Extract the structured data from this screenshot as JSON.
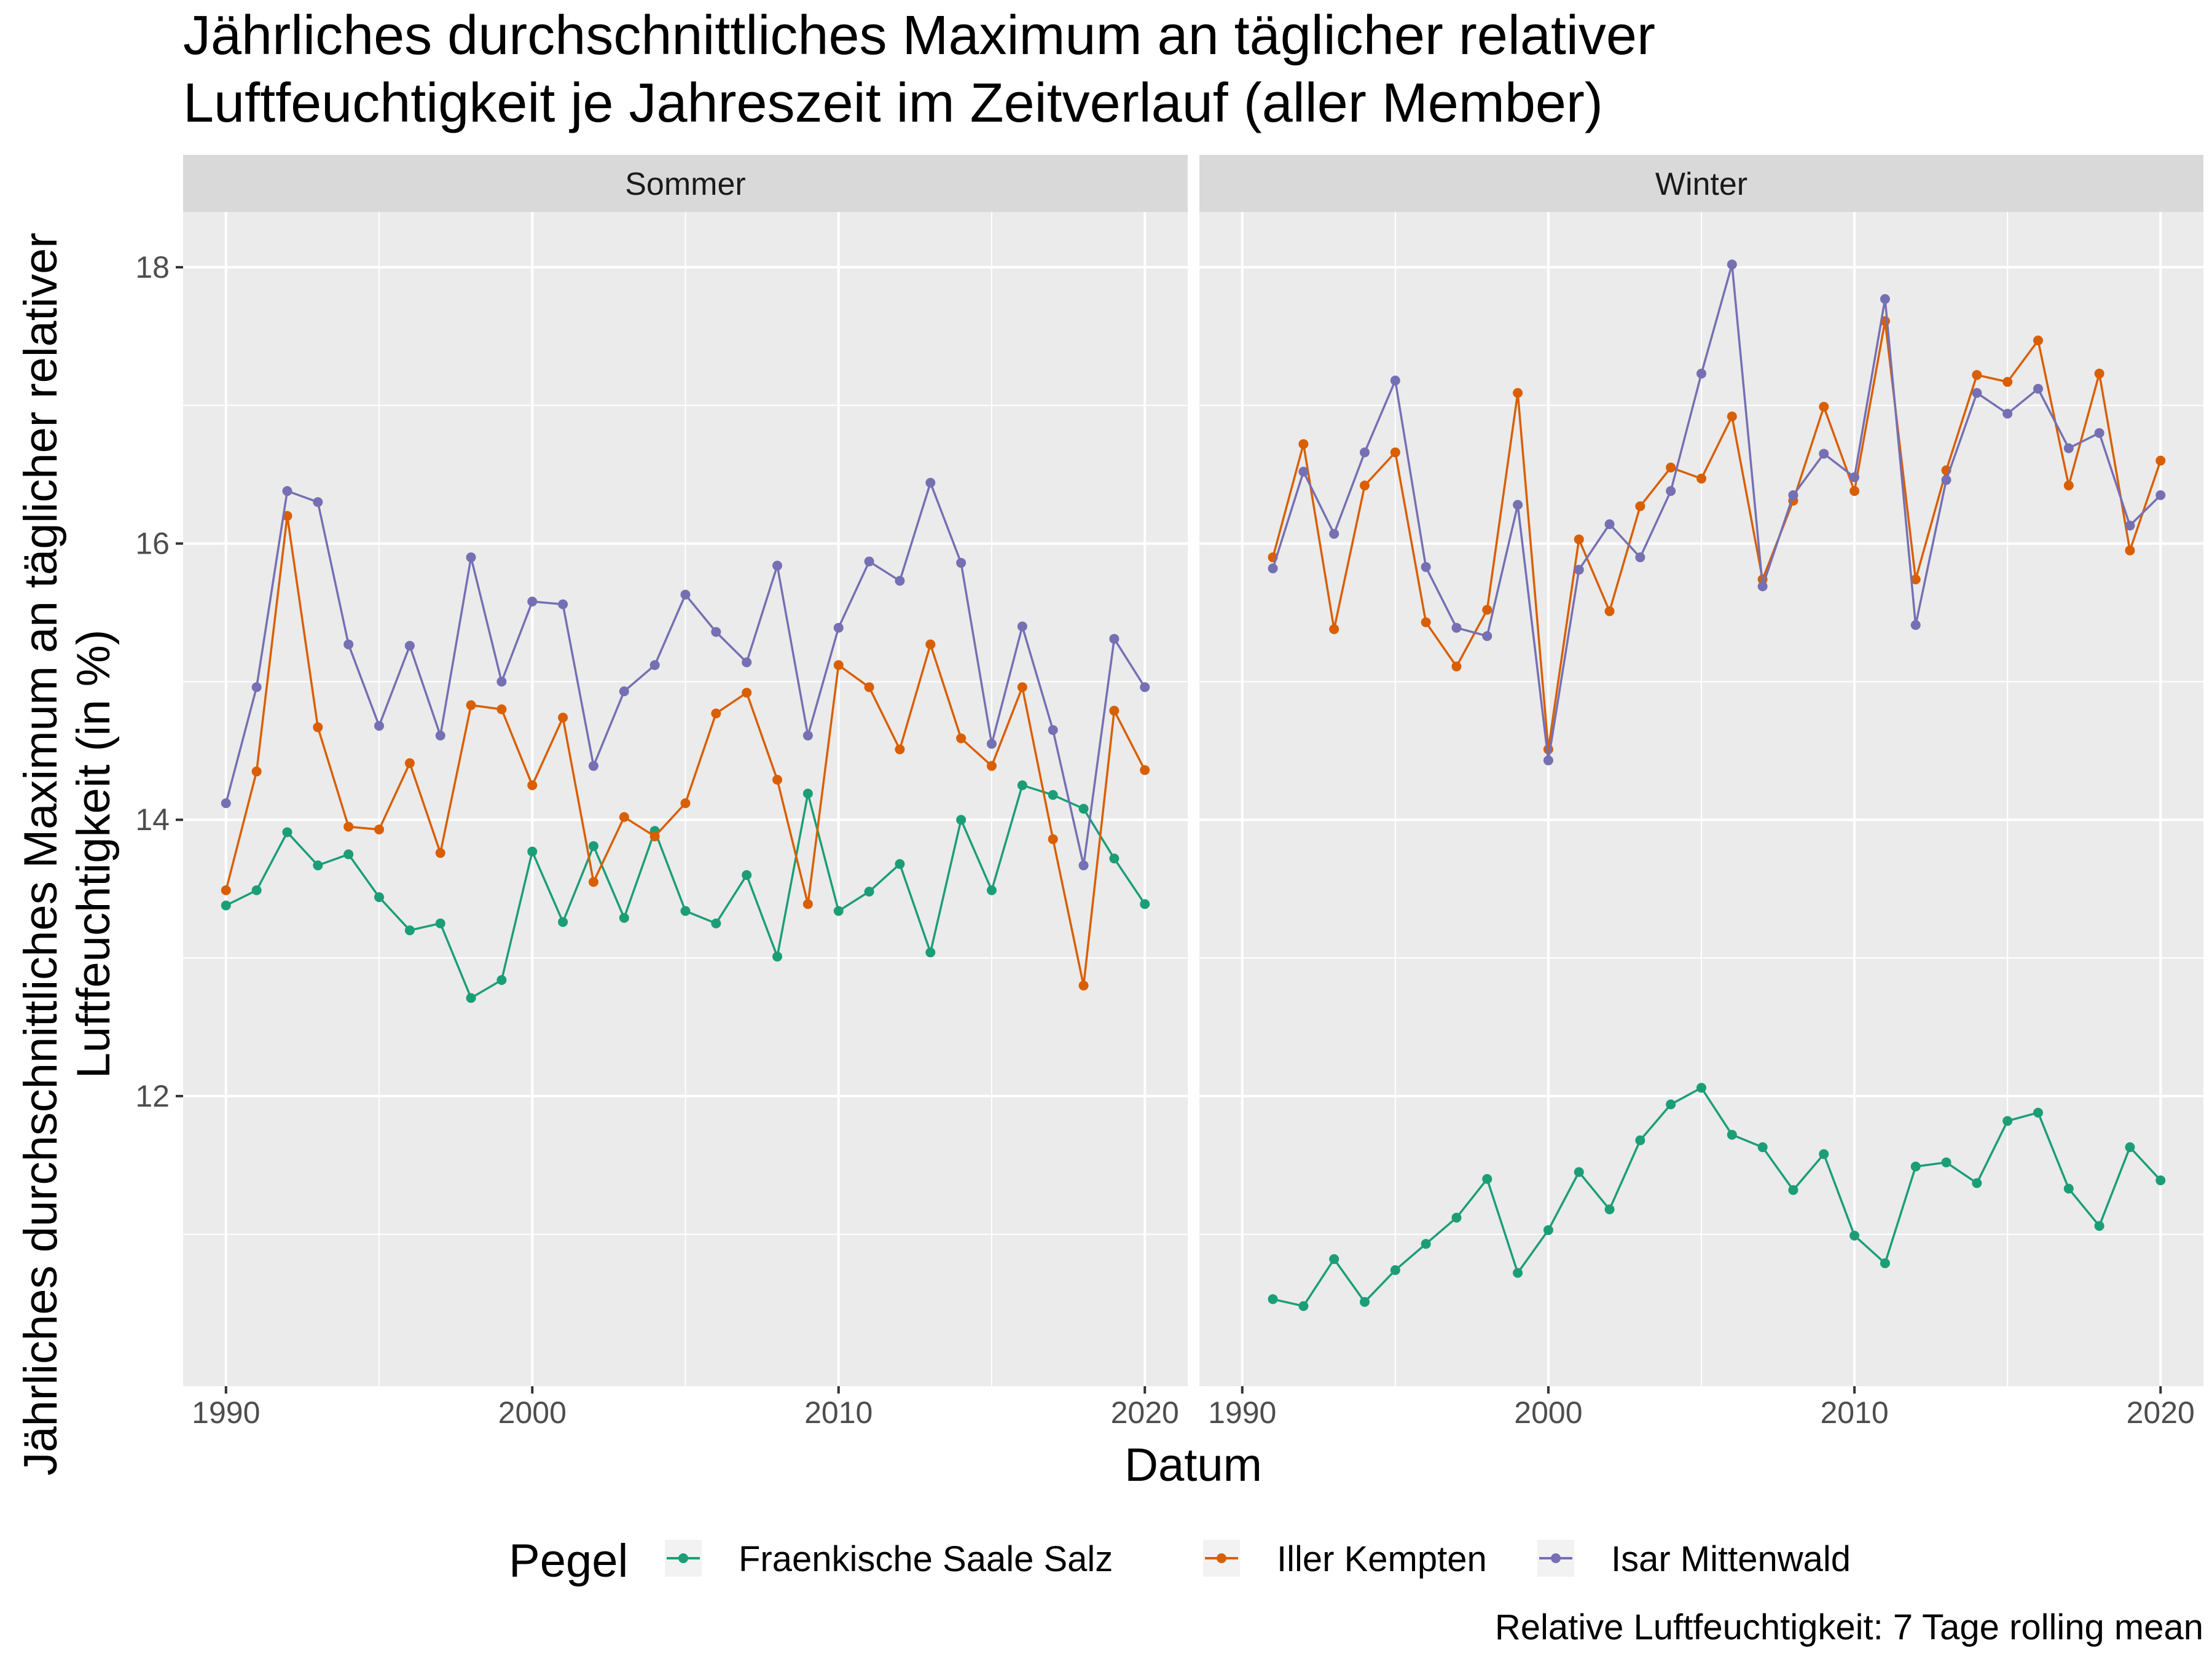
{
  "title_lines": [
    "Jährliches durchschnittliches Maximum an täglicher relativer",
    "Luftfeuchtigkeit je Jahreszeit im Zeitverlauf (aller Member)"
  ],
  "caption": "Relative Luftfeuchtigkeit: 7 Tage rolling mean",
  "legend": {
    "title": "Pegel"
  },
  "colors": {
    "Fraenkische Saale Salz": "#1b9e77",
    "Iller Kempten": "#d95f02",
    "Isar Mittenwald": "#7570b3",
    "panel_bg": "#ebebeb",
    "strip_bg": "#d9d9d9",
    "grid": "#ffffff"
  },
  "chart_data": {
    "type": "line",
    "title": "Jährliches durchschnittliches Maximum an täglicher relativer Luftfeuchtigkeit je Jahreszeit im Zeitverlauf (aller Member)",
    "xlabel": "Datum",
    "ylabel": "Jährliches durchschnittliches Maximum an täglicher relativer Luftfeuchtigkeit (in %)",
    "ylabel_lines": [
      "Jährliches durchschnittliches Maximum an täglicher relativer",
      "Luftfeuchtigkeit (in %)"
    ],
    "xlim": [
      1988.6,
      2021.4
    ],
    "ylim": [
      9.9,
      18.4
    ],
    "x_ticks": [
      1990,
      2000,
      2010,
      2020
    ],
    "y_ticks": [
      12,
      14,
      16,
      18
    ],
    "grid": true,
    "legend_position": "bottom",
    "panels": [
      {
        "name": "Sommer",
        "series": [
          {
            "name": "Fraenkische Saale Salz",
            "x": [
              1990,
              1991,
              1992,
              1993,
              1994,
              1995,
              1996,
              1997,
              1998,
              1999,
              2000,
              2001,
              2002,
              2003,
              2004,
              2005,
              2006,
              2007,
              2008,
              2009,
              2010,
              2011,
              2012,
              2013,
              2014,
              2015,
              2016,
              2017,
              2018,
              2019,
              2020
            ],
            "y": [
              13.38,
              13.49,
              13.91,
              13.67,
              13.75,
              13.44,
              13.2,
              13.25,
              12.71,
              12.84,
              13.77,
              13.26,
              13.81,
              13.29,
              13.92,
              13.34,
              13.25,
              13.6,
              13.01,
              14.19,
              13.34,
              13.48,
              13.68,
              13.04,
              14.0,
              13.49,
              14.25,
              14.18,
              14.08,
              13.72,
              13.39
            ]
          },
          {
            "name": "Iller Kempten",
            "x": [
              1990,
              1991,
              1992,
              1993,
              1994,
              1995,
              1996,
              1997,
              1998,
              1999,
              2000,
              2001,
              2002,
              2003,
              2004,
              2005,
              2006,
              2007,
              2008,
              2009,
              2010,
              2011,
              2012,
              2013,
              2014,
              2015,
              2016,
              2017,
              2018,
              2019,
              2020
            ],
            "y": [
              13.49,
              14.35,
              16.2,
              14.67,
              13.95,
              13.93,
              14.41,
              13.76,
              14.83,
              14.8,
              14.25,
              14.74,
              13.55,
              14.02,
              13.88,
              14.12,
              14.77,
              14.92,
              14.29,
              13.39,
              15.12,
              14.96,
              14.51,
              15.27,
              14.59,
              14.39,
              14.96,
              13.86,
              12.8,
              14.79,
              14.36
            ]
          },
          {
            "name": "Isar Mittenwald",
            "x": [
              1990,
              1991,
              1992,
              1993,
              1994,
              1995,
              1996,
              1997,
              1998,
              1999,
              2000,
              2001,
              2002,
              2003,
              2004,
              2005,
              2006,
              2007,
              2008,
              2009,
              2010,
              2011,
              2012,
              2013,
              2014,
              2015,
              2016,
              2017,
              2018,
              2019,
              2020
            ],
            "y": [
              14.12,
              14.96,
              16.38,
              16.3,
              15.27,
              14.68,
              15.26,
              14.61,
              15.9,
              15.0,
              15.58,
              15.56,
              14.39,
              14.93,
              15.12,
              15.63,
              15.36,
              15.14,
              15.84,
              14.61,
              15.39,
              15.87,
              15.73,
              16.44,
              15.86,
              14.55,
              15.4,
              14.65,
              13.67,
              15.31,
              14.96
            ]
          }
        ]
      },
      {
        "name": "Winter",
        "series": [
          {
            "name": "Fraenkische Saale Salz",
            "x": [
              1991,
              1992,
              1993,
              1994,
              1995,
              1996,
              1997,
              1998,
              1999,
              2000,
              2001,
              2002,
              2003,
              2004,
              2005,
              2006,
              2007,
              2008,
              2009,
              2010,
              2011,
              2012,
              2013,
              2014,
              2015,
              2016,
              2017,
              2018,
              2019,
              2020
            ],
            "y": [
              10.53,
              10.48,
              10.82,
              10.51,
              10.74,
              10.93,
              11.12,
              11.4,
              10.72,
              11.03,
              11.45,
              11.18,
              11.68,
              11.94,
              12.06,
              11.72,
              11.63,
              11.32,
              11.58,
              10.99,
              10.79,
              11.49,
              11.52,
              11.37,
              11.82,
              11.88,
              11.33,
              11.06,
              11.63,
              11.39
            ]
          },
          {
            "name": "Iller Kempten",
            "x": [
              1991,
              1992,
              1993,
              1994,
              1995,
              1996,
              1997,
              1998,
              1999,
              2000,
              2001,
              2002,
              2003,
              2004,
              2005,
              2006,
              2007,
              2008,
              2009,
              2010,
              2011,
              2012,
              2013,
              2014,
              2015,
              2016,
              2017,
              2018,
              2019,
              2020
            ],
            "y": [
              15.9,
              16.72,
              15.38,
              16.42,
              16.66,
              15.43,
              15.11,
              15.52,
              17.09,
              14.51,
              16.03,
              15.51,
              16.27,
              16.55,
              16.47,
              16.92,
              15.74,
              16.31,
              16.99,
              16.38,
              17.61,
              15.74,
              16.53,
              17.22,
              17.17,
              17.47,
              16.42,
              17.23,
              15.95,
              16.6
            ]
          },
          {
            "name": "Isar Mittenwald",
            "x": [
              1991,
              1992,
              1993,
              1994,
              1995,
              1996,
              1997,
              1998,
              1999,
              2000,
              2001,
              2002,
              2003,
              2004,
              2005,
              2006,
              2007,
              2008,
              2009,
              2010,
              2011,
              2012,
              2013,
              2014,
              2015,
              2016,
              2017,
              2018,
              2019,
              2020
            ],
            "y": [
              15.82,
              16.52,
              16.07,
              16.66,
              17.18,
              15.83,
              15.39,
              15.33,
              16.28,
              14.43,
              15.81,
              16.14,
              15.9,
              16.38,
              17.23,
              18.02,
              15.69,
              16.35,
              16.65,
              16.48,
              17.77,
              15.41,
              16.46,
              17.09,
              16.94,
              17.12,
              16.69,
              16.8,
              16.13,
              16.35
            ]
          }
        ]
      }
    ]
  }
}
